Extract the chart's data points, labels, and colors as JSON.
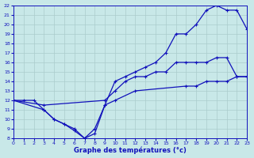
{
  "xlabel": "Graphe des températures (°c)",
  "bg_color": "#c8e8e8",
  "grid_color": "#aacccc",
  "line_color": "#1111bb",
  "xlim": [
    0,
    23
  ],
  "ylim": [
    8,
    22
  ],
  "xticks": [
    0,
    1,
    2,
    3,
    4,
    5,
    6,
    7,
    8,
    9,
    10,
    11,
    12,
    13,
    14,
    15,
    16,
    17,
    18,
    19,
    20,
    21,
    22,
    23
  ],
  "yticks": [
    8,
    9,
    10,
    11,
    12,
    13,
    14,
    15,
    16,
    17,
    18,
    19,
    20,
    21,
    22
  ],
  "curve1_x": [
    0,
    1,
    2,
    3,
    4,
    5,
    6,
    7,
    8,
    9,
    10,
    11,
    12,
    13,
    14,
    15,
    16,
    17,
    18,
    19,
    20,
    21,
    22,
    23
  ],
  "curve1_y": [
    12,
    12,
    12,
    11,
    10,
    9.5,
    9,
    8,
    9,
    11.5,
    14,
    14.5,
    15,
    15.5,
    16,
    17,
    19,
    19,
    20,
    21.5,
    22,
    21.5,
    21.5,
    19.5
  ],
  "curve2_x": [
    0,
    3,
    9,
    10,
    11,
    12,
    13,
    14,
    15,
    16,
    17,
    18,
    19,
    20,
    21,
    22,
    23
  ],
  "curve2_y": [
    12,
    11.5,
    12,
    13,
    14,
    14.5,
    14.5,
    15,
    15,
    16,
    16,
    16,
    16,
    16.5,
    16.5,
    14.5,
    14.5
  ],
  "curve3_x": [
    0,
    3,
    4,
    5,
    6,
    7,
    8,
    9,
    10,
    12,
    17,
    18,
    19,
    20,
    21,
    22,
    23
  ],
  "curve3_y": [
    12,
    11,
    10,
    9.5,
    8.8,
    8,
    8.5,
    11.5,
    12,
    13,
    13.5,
    13.5,
    14,
    14,
    14,
    14.5,
    14.5
  ]
}
